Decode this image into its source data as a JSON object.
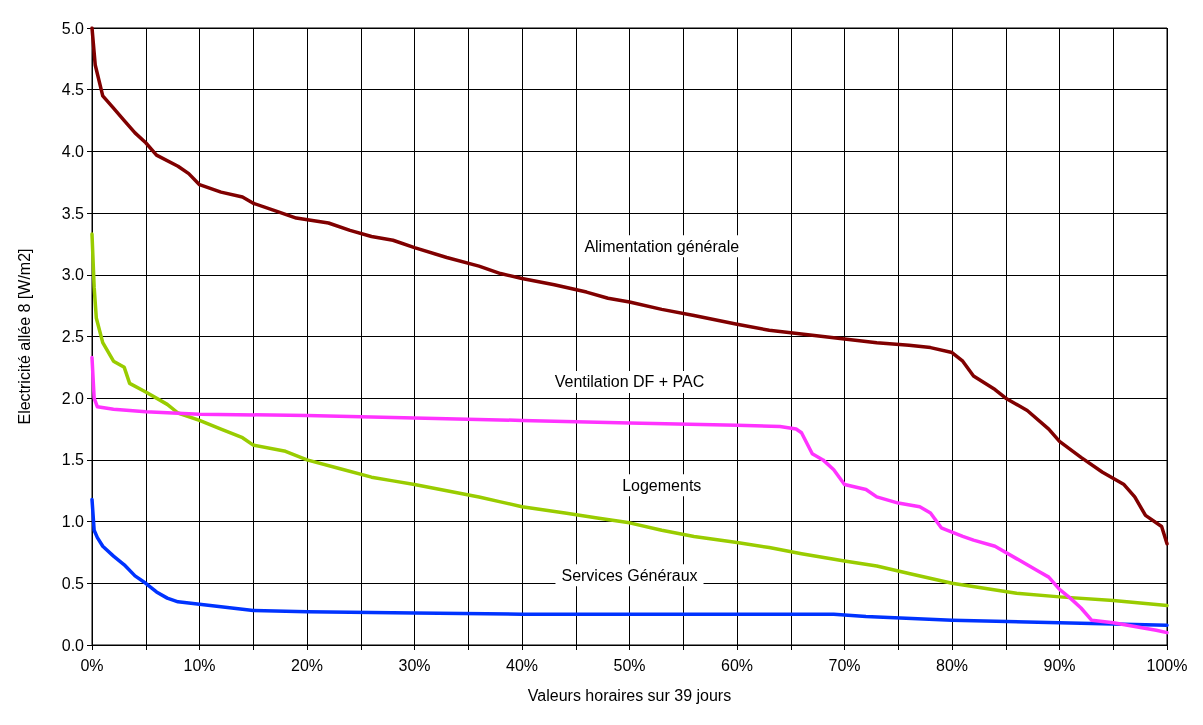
{
  "chart_data": {
    "type": "line",
    "xlabel": "Valeurs horaires sur 39 jours",
    "ylabel": "Electricité allée 8 [W/m2]",
    "xlim": [
      0,
      100
    ],
    "xticks": [
      {
        "value": 0,
        "label": "0%"
      },
      {
        "value": 5,
        "label": null
      },
      {
        "value": 10,
        "label": "10%"
      },
      {
        "value": 15,
        "label": null
      },
      {
        "value": 20,
        "label": "20%"
      },
      {
        "value": 25,
        "label": null
      },
      {
        "value": 30,
        "label": "30%"
      },
      {
        "value": 35,
        "label": null
      },
      {
        "value": 40,
        "label": "40%"
      },
      {
        "value": 45,
        "label": null
      },
      {
        "value": 50,
        "label": "50%"
      },
      {
        "value": 55,
        "label": null
      },
      {
        "value": 60,
        "label": "60%"
      },
      {
        "value": 65,
        "label": null
      },
      {
        "value": 70,
        "label": "70%"
      },
      {
        "value": 75,
        "label": null
      },
      {
        "value": 80,
        "label": "80%"
      },
      {
        "value": 85,
        "label": null
      },
      {
        "value": 90,
        "label": "90%"
      },
      {
        "value": 95,
        "label": null
      },
      {
        "value": 100,
        "label": "100%"
      }
    ],
    "ylim": [
      0,
      5
    ],
    "yticks": [
      {
        "value": 0,
        "label": "0.0"
      },
      {
        "value": 0.5,
        "label": "0.5"
      },
      {
        "value": 1,
        "label": "1.0"
      },
      {
        "value": 1.5,
        "label": "1.5"
      },
      {
        "value": 2,
        "label": "2.0"
      },
      {
        "value": 2.5,
        "label": "2.5"
      },
      {
        "value": 3,
        "label": "3.0"
      },
      {
        "value": 3.5,
        "label": "3.5"
      },
      {
        "value": 4,
        "label": "4.0"
      },
      {
        "value": 4.5,
        "label": "4.5"
      },
      {
        "value": 5,
        "label": "5.0"
      }
    ],
    "grid": true,
    "series": [
      {
        "name": "Alimentation générale",
        "color": "#800000",
        "x": [
          0,
          0.3,
          1,
          2,
          3,
          4,
          5,
          6,
          8,
          9,
          10,
          12,
          14,
          15,
          17,
          19,
          22,
          24,
          26,
          28,
          30,
          33,
          36,
          38,
          40,
          43,
          46,
          48,
          50,
          53,
          56,
          60,
          63,
          66,
          70,
          73,
          76,
          78,
          80,
          81,
          82,
          84,
          85,
          87,
          89,
          90,
          92,
          94,
          96,
          97,
          98,
          99.5,
          100
        ],
        "values": [
          5.0,
          4.7,
          4.45,
          4.35,
          4.25,
          4.15,
          4.07,
          3.97,
          3.88,
          3.82,
          3.73,
          3.67,
          3.63,
          3.58,
          3.52,
          3.46,
          3.42,
          3.36,
          3.31,
          3.28,
          3.22,
          3.14,
          3.07,
          3.01,
          2.97,
          2.92,
          2.86,
          2.81,
          2.78,
          2.72,
          2.67,
          2.6,
          2.55,
          2.52,
          2.48,
          2.45,
          2.43,
          2.41,
          2.37,
          2.3,
          2.18,
          2.07,
          2.0,
          1.9,
          1.75,
          1.65,
          1.52,
          1.4,
          1.3,
          1.2,
          1.05,
          0.96,
          0.82
        ]
      },
      {
        "name": "Ventilation DF + PAC",
        "color": "#ff33ff",
        "x": [
          0,
          0.2,
          0.5,
          2,
          5,
          10,
          20,
          30,
          40,
          50,
          60,
          64,
          65.5,
          66,
          67,
          68,
          69,
          70,
          72,
          73,
          75,
          77,
          78,
          79,
          81,
          82,
          84,
          86,
          88,
          89,
          90,
          91,
          92,
          93,
          95,
          97,
          99,
          100
        ],
        "values": [
          2.33,
          2.0,
          1.93,
          1.91,
          1.89,
          1.87,
          1.86,
          1.84,
          1.82,
          1.8,
          1.78,
          1.77,
          1.75,
          1.72,
          1.55,
          1.5,
          1.42,
          1.3,
          1.26,
          1.2,
          1.15,
          1.12,
          1.07,
          0.95,
          0.88,
          0.85,
          0.8,
          0.7,
          0.6,
          0.55,
          0.45,
          0.38,
          0.3,
          0.2,
          0.18,
          0.15,
          0.12,
          0.1
        ]
      },
      {
        "name": "Logements",
        "color": "#99cc00",
        "x": [
          0,
          0.2,
          0.4,
          1,
          2,
          3,
          3.5,
          5,
          7,
          8,
          10,
          12,
          14,
          15,
          18,
          20,
          23,
          26,
          28,
          30,
          33,
          36,
          38,
          40,
          44,
          47,
          50,
          53,
          56,
          60,
          63,
          66,
          70,
          73,
          76,
          80,
          83,
          86,
          90,
          95,
          100
        ],
        "values": [
          3.33,
          2.9,
          2.65,
          2.45,
          2.3,
          2.25,
          2.12,
          2.05,
          1.95,
          1.88,
          1.82,
          1.75,
          1.68,
          1.62,
          1.57,
          1.5,
          1.43,
          1.36,
          1.33,
          1.3,
          1.25,
          1.2,
          1.16,
          1.12,
          1.07,
          1.03,
          0.99,
          0.93,
          0.88,
          0.83,
          0.79,
          0.74,
          0.68,
          0.64,
          0.58,
          0.5,
          0.46,
          0.42,
          0.39,
          0.36,
          0.32
        ]
      },
      {
        "name": "Services Généraux",
        "color": "#0033ff",
        "x": [
          0,
          0.2,
          0.5,
          1,
          2,
          3,
          4,
          5,
          6,
          7,
          8,
          10,
          12,
          15,
          20,
          30,
          40,
          50,
          60,
          69,
          72,
          80,
          90,
          100
        ],
        "values": [
          1.18,
          0.93,
          0.87,
          0.8,
          0.72,
          0.65,
          0.56,
          0.5,
          0.43,
          0.38,
          0.35,
          0.33,
          0.31,
          0.28,
          0.27,
          0.26,
          0.25,
          0.25,
          0.25,
          0.25,
          0.23,
          0.2,
          0.18,
          0.16
        ]
      }
    ]
  }
}
